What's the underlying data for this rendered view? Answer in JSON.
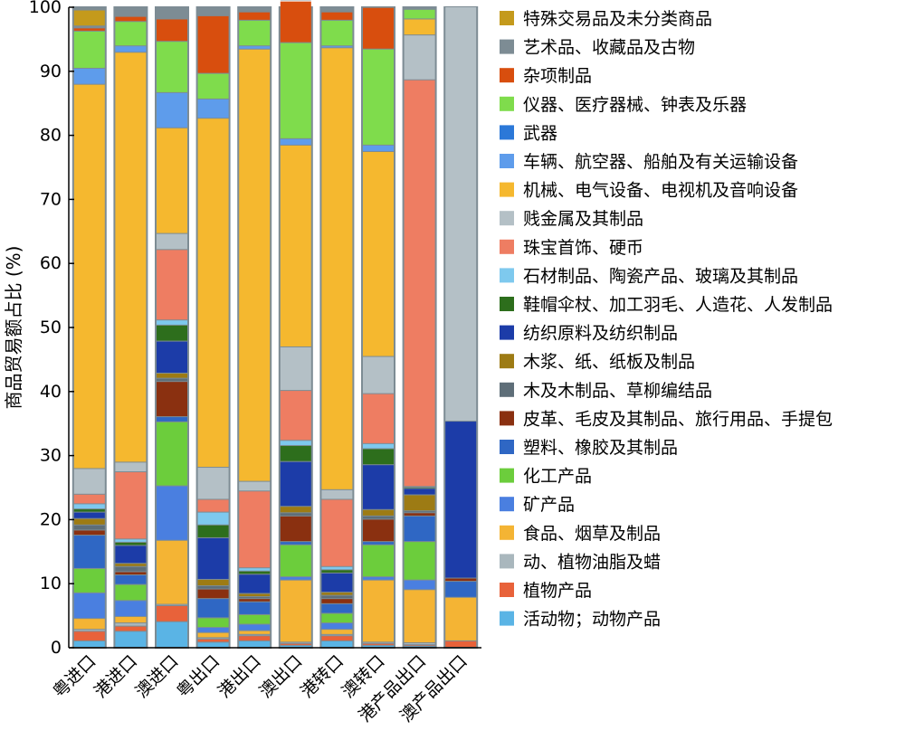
{
  "chart_data": {
    "type": "bar",
    "stacked": true,
    "ylabel": "商品贸易额占比 (%)",
    "xlabel": "",
    "ylim": [
      0,
      100
    ],
    "yticks": [
      "0",
      "10",
      "20",
      "30",
      "40",
      "50",
      "60",
      "70",
      "80",
      "90",
      "100"
    ],
    "grid": false,
    "legend_position": "right",
    "categories": [
      "粤进口",
      "港进口",
      "澳进口",
      "粤出口",
      "港出口",
      "澳出口",
      "港转口",
      "澳转口",
      "港产品出口",
      "澳产品出口"
    ],
    "series": [
      {
        "name": "活动物；动物产品",
        "color": "#5ab4e5",
        "values": [
          1.0,
          2.5,
          4.0,
          0.8,
          1.0,
          0.3,
          1.0,
          0.3,
          0.2,
          0.0
        ]
      },
      {
        "name": "植物产品",
        "color": "#e8623a",
        "values": [
          1.5,
          0.8,
          2.5,
          0.5,
          0.8,
          0.3,
          0.8,
          0.3,
          0.2,
          1.0
        ]
      },
      {
        "name": "动、植物油脂及蜡",
        "color": "#a9b7bd",
        "values": [
          0.3,
          0.5,
          0.2,
          0.2,
          0.2,
          0.2,
          0.2,
          0.2,
          0.3,
          0.0
        ]
      },
      {
        "name": "食品、烟草及制品",
        "color": "#f4b434",
        "values": [
          1.7,
          1.0,
          10.0,
          0.8,
          0.6,
          9.7,
          0.8,
          9.7,
          8.3,
          6.8
        ]
      },
      {
        "name": "矿产品",
        "color": "#4a7fe0",
        "values": [
          4.0,
          2.5,
          8.5,
          0.8,
          1.0,
          0.5,
          1.0,
          0.5,
          1.5,
          0.0
        ]
      },
      {
        "name": "化工产品",
        "color": "#6ccd3c",
        "values": [
          3.8,
          2.5,
          10.0,
          1.5,
          1.5,
          5.0,
          1.5,
          5.0,
          6.0,
          0.0
        ]
      },
      {
        "name": "塑料、橡胶及其制品",
        "color": "#2f67c4",
        "values": [
          5.2,
          1.5,
          0.8,
          3.0,
          2.0,
          0.5,
          1.5,
          0.5,
          4.0,
          2.5
        ]
      },
      {
        "name": "皮革、毛皮及其制品、旅行用品、手提包",
        "color": "#8a3010",
        "values": [
          0.8,
          0.5,
          5.5,
          1.5,
          0.5,
          4.0,
          0.8,
          3.5,
          0.5,
          0.5
        ]
      },
      {
        "name": "木及木制品、草柳编结品",
        "color": "#5e6e78",
        "values": [
          0.8,
          0.8,
          0.5,
          0.5,
          0.3,
          0.5,
          0.5,
          0.5,
          0.3,
          0.0
        ]
      },
      {
        "name": "木浆、纸、纸板及制品",
        "color": "#9d7b14",
        "values": [
          1.0,
          0.5,
          0.8,
          1.0,
          0.5,
          1.0,
          0.5,
          1.0,
          2.5,
          0.0
        ]
      },
      {
        "name": "纺织原料及纺织制品",
        "color": "#1c3ca8",
        "values": [
          1.0,
          2.8,
          5.0,
          6.5,
          3.0,
          7.0,
          3.0,
          7.0,
          1.0,
          24.5
        ]
      },
      {
        "name": "鞋帽伞杖、加工羽毛、人造花、人发制品",
        "color": "#2d6e1c",
        "values": [
          0.5,
          0.5,
          2.5,
          2.0,
          0.5,
          2.5,
          0.5,
          2.5,
          0.2,
          0.0
        ]
      },
      {
        "name": "石材制品、陶瓷产品、玻璃及其制品",
        "color": "#7ec9ee",
        "values": [
          0.8,
          0.5,
          0.8,
          2.0,
          0.5,
          0.8,
          0.5,
          0.8,
          0.1,
          0.0
        ]
      },
      {
        "name": "珠宝首饰、硬币",
        "color": "#ee7d62",
        "values": [
          1.5,
          10.5,
          11.0,
          2.0,
          12.0,
          7.8,
          10.5,
          7.8,
          63.5,
          0.0
        ]
      },
      {
        "name": "贱金属及其制品",
        "color": "#b4c0c6",
        "values": [
          4.0,
          1.5,
          2.5,
          5.0,
          1.5,
          6.8,
          1.5,
          5.8,
          7.0,
          64.7
        ]
      },
      {
        "name": "机械、电气设备、电视机及音响设备",
        "color": "#f5b82f",
        "values": [
          60.0,
          64.0,
          16.5,
          54.5,
          67.5,
          31.5,
          69.0,
          32.0,
          2.5,
          0.0
        ]
      },
      {
        "name": "车辆、航空器、船舶及有关运输设备",
        "color": "#5e9ceb",
        "values": [
          2.5,
          1.0,
          5.5,
          3.0,
          0.5,
          1.0,
          0.3,
          1.0,
          0.0,
          0.0
        ]
      },
      {
        "name": "武器",
        "color": "#2b78d8",
        "values": [
          0.0,
          0.0,
          0.0,
          0.0,
          0.0,
          0.0,
          0.0,
          0.0,
          0.0,
          0.0
        ]
      },
      {
        "name": "仪器、医疗器械、钟表及乐器",
        "color": "#7fdc4c",
        "values": [
          5.8,
          3.8,
          8.0,
          4.0,
          4.0,
          15.0,
          4.0,
          15.0,
          1.5,
          0.0
        ]
      },
      {
        "name": "杂项制品",
        "color": "#d84e0e",
        "values": [
          0.5,
          0.8,
          3.5,
          9.0,
          1.3,
          6.5,
          1.3,
          6.5,
          0.0,
          0.0
        ]
      },
      {
        "name": "艺术品、收藏品及古物",
        "color": "#7d8c94",
        "values": [
          0.3,
          1.0,
          0.2,
          0.2,
          0.2,
          0.2,
          0.2,
          0.2,
          0.2,
          0.0
        ]
      },
      {
        "name": "特殊交易品及未分类商品",
        "color": "#c49a1c",
        "values": [
          2.5,
          0.0,
          0.0,
          0.0,
          0.0,
          0.0,
          0.0,
          0.0,
          0.0,
          0.0
        ]
      }
    ]
  }
}
